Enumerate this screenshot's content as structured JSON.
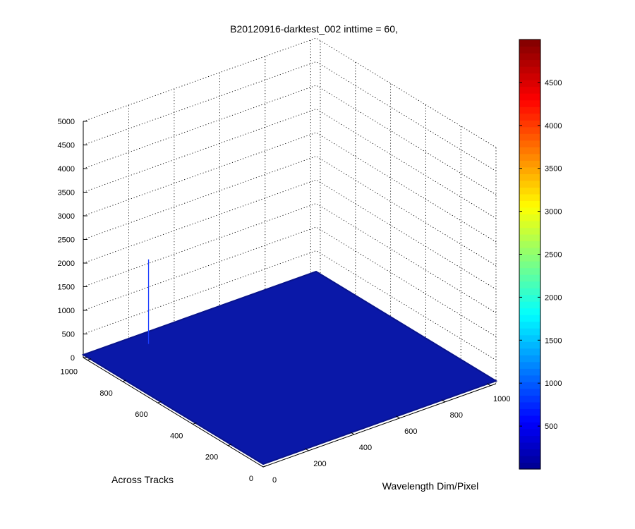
{
  "chart_data": {
    "type": "surface3d",
    "title": "B20120916-darktest_002 inttime = 60,",
    "xlabel": "Wavelength Dim/Pixel",
    "ylabel": "Across Tracks",
    "zlabel": "",
    "x_ticks": [
      0,
      200,
      400,
      600,
      800,
      1000
    ],
    "y_ticks": [
      0,
      200,
      400,
      600,
      800,
      1000
    ],
    "z_ticks": [
      0,
      500,
      1000,
      1500,
      2000,
      2500,
      3000,
      3500,
      4000,
      4500,
      5000
    ],
    "xlim": [
      0,
      1024
    ],
    "ylim": [
      0,
      1024
    ],
    "zlim": [
      0,
      5000
    ],
    "surface_level": 60,
    "spikes": [
      {
        "x": 230,
        "y": 950,
        "z": 1850
      }
    ],
    "grid": true,
    "colormap": "jet",
    "colorbar": {
      "clim": [
        0,
        5000
      ],
      "ticks": [
        500,
        1000,
        1500,
        2000,
        2500,
        3000,
        3500,
        4000,
        4500
      ]
    }
  },
  "colors": {
    "surface": "#0a18a8",
    "spike": "#1a3dff"
  }
}
